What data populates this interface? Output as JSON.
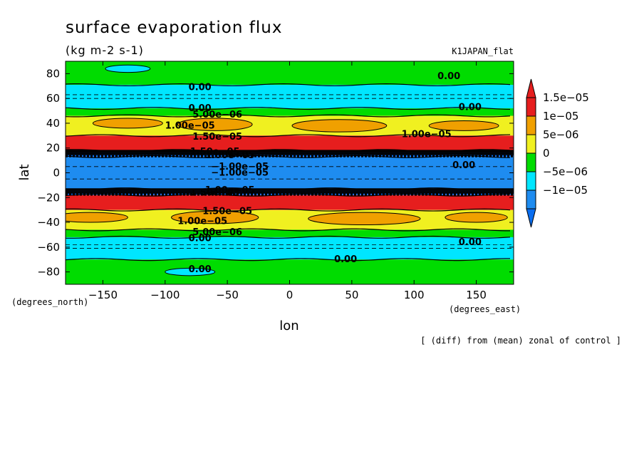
{
  "chart_data": {
    "type": "heatmap",
    "title": "surface evaporation flux",
    "units": "(kg m-2 s-1)",
    "experiment": "K1JAPAN_flat",
    "xlabel": "lon",
    "ylabel": "lat",
    "x_units": "(degrees_east)",
    "y_units": "(degrees_north)",
    "footnote": "[ (diff) from (mean) zonal of control ]",
    "xlim": [
      -180,
      180
    ],
    "ylim": [
      -90,
      90
    ],
    "x_ticks": [
      -150,
      -100,
      -50,
      0,
      50,
      100,
      150
    ],
    "x_tick_labels": [
      "−150",
      "−100",
      "−50",
      "0",
      "50",
      "100",
      "150"
    ],
    "y_ticks": [
      80,
      60,
      40,
      20,
      0,
      -20,
      -40,
      -60,
      -80
    ],
    "y_tick_labels": [
      "80",
      "60",
      "40",
      "20",
      "0",
      "−20",
      "−40",
      "−60",
      "−80"
    ],
    "legend": {
      "placement": "right",
      "levels": [
        {
          "label": "",
          "color": "#0a6ef0"
        },
        {
          "label": "−1e−05",
          "color": "#1e8cf0"
        },
        {
          "label": "−5e−06",
          "color": "#00e6ff"
        },
        {
          "label": "0",
          "color": "#00dc00"
        },
        {
          "label": "5e−06",
          "color": "#f0f020"
        },
        {
          "label": "1e−05",
          "color": "#f0a000"
        },
        {
          "label": "1.5e−05",
          "color": "#e61e1e"
        },
        {
          "label": "",
          "color": "#e61e1e"
        }
      ]
    },
    "bands": [
      {
        "lat_top": 90,
        "lat_bottom": 71,
        "value": "0 to 5e-06",
        "color": "#00dc00"
      },
      {
        "lat_top": 71,
        "lat_bottom": 52,
        "value": "-5e-06 to 0",
        "color": "#00e6ff"
      },
      {
        "lat_top": 52,
        "lat_bottom": 46,
        "value": "0 to 5e-06",
        "color": "#00dc00"
      },
      {
        "lat_top": 46,
        "lat_bottom": 30,
        "value": "5e-06 to 1e-05",
        "color": "#f0f020"
      },
      {
        "lat_top": 30,
        "lat_bottom": 18,
        "value": "> 1.5e-05",
        "color": "#e61e1e"
      },
      {
        "lat_top": 18,
        "lat_bottom": 13,
        "value": "transition",
        "color": "#0a6ef0"
      },
      {
        "lat_top": 13,
        "lat_bottom": -13,
        "value": "< -1e-05",
        "color": "#1e8cf0"
      },
      {
        "lat_top": -13,
        "lat_bottom": -18,
        "value": "transition",
        "color": "#0a6ef0"
      },
      {
        "lat_top": -18,
        "lat_bottom": -30,
        "value": "> 1.5e-05",
        "color": "#e61e1e"
      },
      {
        "lat_top": -30,
        "lat_bottom": -46,
        "value": "5e-06 to 1e-05",
        "color": "#f0f020"
      },
      {
        "lat_top": -46,
        "lat_bottom": -52,
        "value": "0 to 5e-06",
        "color": "#00dc00"
      },
      {
        "lat_top": -52,
        "lat_bottom": -70,
        "value": "-5e-06 to 0",
        "color": "#00e6ff"
      },
      {
        "lat_top": -70,
        "lat_bottom": -90,
        "value": "0 to 5e-06",
        "color": "#00dc00"
      }
    ],
    "patches": [
      {
        "lon": -130,
        "lat": 40,
        "rlon": 28,
        "rlat": 4,
        "color": "#f0a000"
      },
      {
        "lon": -60,
        "lat": 39,
        "rlon": 30,
        "rlat": 5,
        "color": "#f0a000"
      },
      {
        "lon": 40,
        "lat": 38,
        "rlon": 38,
        "rlat": 5,
        "color": "#f0a000"
      },
      {
        "lon": 140,
        "lat": 38,
        "rlon": 28,
        "rlat": 4,
        "color": "#f0a000"
      },
      {
        "lon": -160,
        "lat": -36,
        "rlon": 30,
        "rlat": 4,
        "color": "#f0a000"
      },
      {
        "lon": -60,
        "lat": -36,
        "rlon": 35,
        "rlat": 5,
        "color": "#f0a000"
      },
      {
        "lon": 60,
        "lat": -37,
        "rlon": 45,
        "rlat": 5,
        "color": "#f0a000"
      },
      {
        "lon": 150,
        "lat": -36,
        "rlon": 25,
        "rlat": 4,
        "color": "#f0a000"
      },
      {
        "lon": -130,
        "lat": 84,
        "rlon": 18,
        "rlat": 3,
        "color": "#00e6ff"
      },
      {
        "lon": -80,
        "lat": -80,
        "rlon": 20,
        "rlat": 3,
        "color": "#00e6ff"
      }
    ],
    "contour_labels": [
      {
        "text": "0.00",
        "lon": -72,
        "lat": 69
      },
      {
        "text": "0.00",
        "lon": 128,
        "lat": 78
      },
      {
        "text": "0.00",
        "lon": -72,
        "lat": 52
      },
      {
        "text": "0.00",
        "lon": 145,
        "lat": 53
      },
      {
        "text": "5.00e−06",
        "lon": -58,
        "lat": 47
      },
      {
        "text": "1.00e−05",
        "lon": -80,
        "lat": 38
      },
      {
        "text": "1.00e−05",
        "lon": 110,
        "lat": 31
      },
      {
        "text": "1.50e−05",
        "lon": -58,
        "lat": 29
      },
      {
        "text": "1.50e−05",
        "lon": -60,
        "lat": 17
      },
      {
        "text": "1.00e−05",
        "lon": -48,
        "lat": 14
      },
      {
        "text": "−1.00e−05",
        "lon": -40,
        "lat": 5
      },
      {
        "text": "−1.00e−05",
        "lon": -40,
        "lat": 0
      },
      {
        "text": "1.00e−05",
        "lon": -48,
        "lat": -14
      },
      {
        "text": "1.50e−05",
        "lon": -60,
        "lat": -16
      },
      {
        "text": "1.50e−05",
        "lon": -50,
        "lat": -31
      },
      {
        "text": "1.00e−05",
        "lon": -70,
        "lat": -39
      },
      {
        "text": "5.00e−06",
        "lon": -58,
        "lat": -48
      },
      {
        "text": "0.00",
        "lon": -72,
        "lat": -53
      },
      {
        "text": "0.00",
        "lon": 145,
        "lat": -56
      },
      {
        "text": "0.00",
        "lon": 45,
        "lat": -70
      },
      {
        "text": "0.00",
        "lon": -72,
        "lat": -78
      },
      {
        "text": "0.00",
        "lon": 140,
        "lat": 6
      }
    ]
  }
}
